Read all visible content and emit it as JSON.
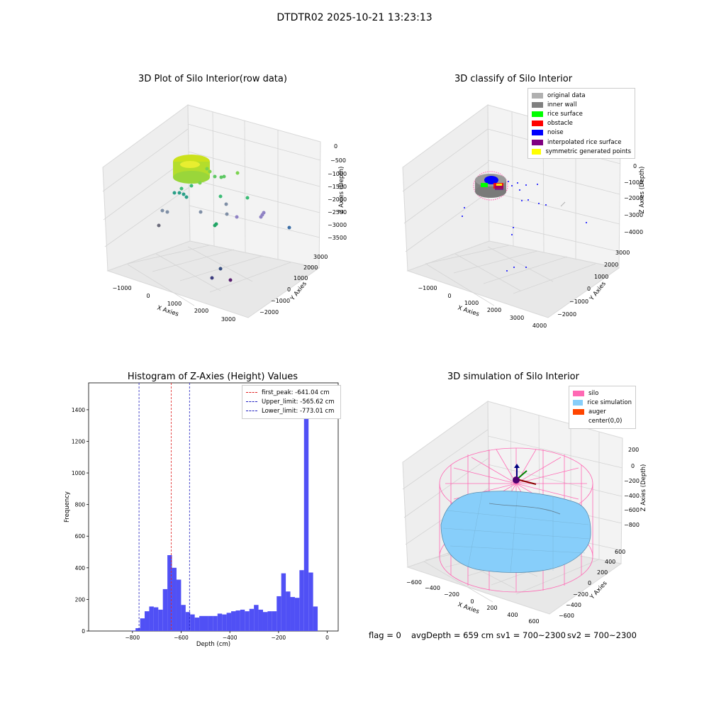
{
  "suptitle": "DTDTR02 2025-10-21 13:23:13",
  "colors": {
    "hist_bar": "#5050f5",
    "first_peak": "#e02020",
    "limits": "#2020c0",
    "silo": "#ff69b4",
    "rice": "#87cefa",
    "auger": "#ff4500",
    "pane": "#f2f2f2",
    "pane_dark": "#e6e6e6",
    "grid": "#d0d0d0"
  },
  "footer": {
    "flag": "flag = 0",
    "avg": "avgDepth = 659 cm",
    "sv1": "sv1 = 700~2300",
    "sv2": "sv2 = 700~2300"
  },
  "plot1": {
    "title": "3D Plot of Silo Interior(row data)",
    "xlabel": "X Axies",
    "ylabel": "Y Axies",
    "zlabel": "Z Axies (Depth)",
    "xticks": [
      "−1000",
      "0",
      "1000",
      "2000",
      "3000"
    ],
    "yticks": [
      "−2000",
      "−1000",
      "0",
      "1000",
      "2000",
      "3000"
    ],
    "zticks": [
      "0",
      "−500",
      "−1000",
      "−1500",
      "−2000",
      "−2500",
      "−3000",
      "−3500"
    ]
  },
  "plot2": {
    "title": "3D classify of Silo Interior",
    "xlabel": "X Axies",
    "ylabel": "Y Axies",
    "zlabel": "Z Axies (Depth)",
    "xticks": [
      "−1000",
      "0",
      "1000",
      "2000",
      "3000",
      "4000"
    ],
    "yticks": [
      "−2000",
      "−1000",
      "0",
      "1000",
      "2000",
      "3000"
    ],
    "zticks": [
      "0",
      "−1000",
      "−2000",
      "−3000",
      "−4000"
    ],
    "legend": [
      {
        "label": "original data",
        "color": "#b0b0b0"
      },
      {
        "label": "inner wall",
        "color": "#808080"
      },
      {
        "label": "rice surface",
        "color": "#00ff00"
      },
      {
        "label": "obstacle",
        "color": "#ff0000"
      },
      {
        "label": "noise",
        "color": "#0000ff"
      },
      {
        "label": "interpolated rice surface",
        "color": "#800080"
      },
      {
        "label": "symmetric generated points",
        "color": "#ffff00"
      }
    ]
  },
  "plot3": {
    "title": "3D simulation of Silo Interior",
    "xlabel": "X Axies",
    "ylabel": "Y Axies",
    "zlabel": "Z Axies (Depth)",
    "xticks": [
      "−600",
      "−400",
      "−200",
      "0",
      "200",
      "400",
      "600"
    ],
    "yticks": [
      "−600",
      "−400",
      "−200",
      "0",
      "200",
      "400",
      "600"
    ],
    "zticks": [
      "200",
      "0",
      "−200",
      "−400",
      "−600",
      "−800"
    ],
    "legend": [
      {
        "label": "silo",
        "color": "#ff69b4"
      },
      {
        "label": "rice simulation",
        "color": "#87cefa"
      },
      {
        "label": "auger",
        "color": "#ff4500"
      },
      {
        "label": "center(0,0)",
        "color": ""
      }
    ]
  },
  "chart_data": [
    {
      "type": "bar",
      "title": "Histogram of Z-Axies (Height) Values",
      "xlabel": "Depth (cm)",
      "ylabel": "Frequency",
      "xlim": [
        -980,
        45
      ],
      "ylim": [
        0,
        1570
      ],
      "xticks": [
        -800,
        -600,
        -400,
        -200,
        0
      ],
      "yticks": [
        0,
        200,
        400,
        600,
        800,
        1000,
        1200,
        1400
      ],
      "bin_width": 18.7,
      "bins_start": [
        -806,
        -787.3,
        -768.6,
        -749.9,
        -731.2,
        -712.5,
        -693.8,
        -675.1,
        -656.4,
        -637.7,
        -619,
        -600.3,
        -581.6,
        -562.9,
        -544.2,
        -525.5,
        -506.8,
        -488.1,
        -469.4,
        -450.7,
        -432,
        -413.3,
        -394.6,
        -375.9,
        -357.2,
        -338.5,
        -319.8,
        -301.1,
        -282.4,
        -263.7,
        -245,
        -226.3,
        -207.6,
        -188.9,
        -170.2,
        -151.5,
        -132.8,
        -114.1,
        -95.4,
        -76.7,
        -58,
        -39.3,
        -20.6,
        -1.9
      ],
      "values": [
        3,
        18,
        80,
        125,
        155,
        150,
        135,
        265,
        480,
        400,
        325,
        165,
        120,
        105,
        85,
        95,
        95,
        95,
        95,
        110,
        105,
        115,
        125,
        130,
        135,
        125,
        140,
        165,
        135,
        120,
        125,
        125,
        220,
        365,
        250,
        215,
        210,
        385,
        1470,
        370,
        155,
        0,
        0,
        0
      ],
      "vlines": [
        {
          "label": "first_peak: -641.04 cm",
          "x": -641.04,
          "color": "#e02020"
        },
        {
          "label": "Upper_limit: -565.62 cm",
          "x": -565.62,
          "color": "#2020c0"
        },
        {
          "label": "Lower_limit: -773.01 cm",
          "x": -773.01,
          "color": "#2020c0"
        }
      ],
      "legend_position": "top-right"
    }
  ]
}
